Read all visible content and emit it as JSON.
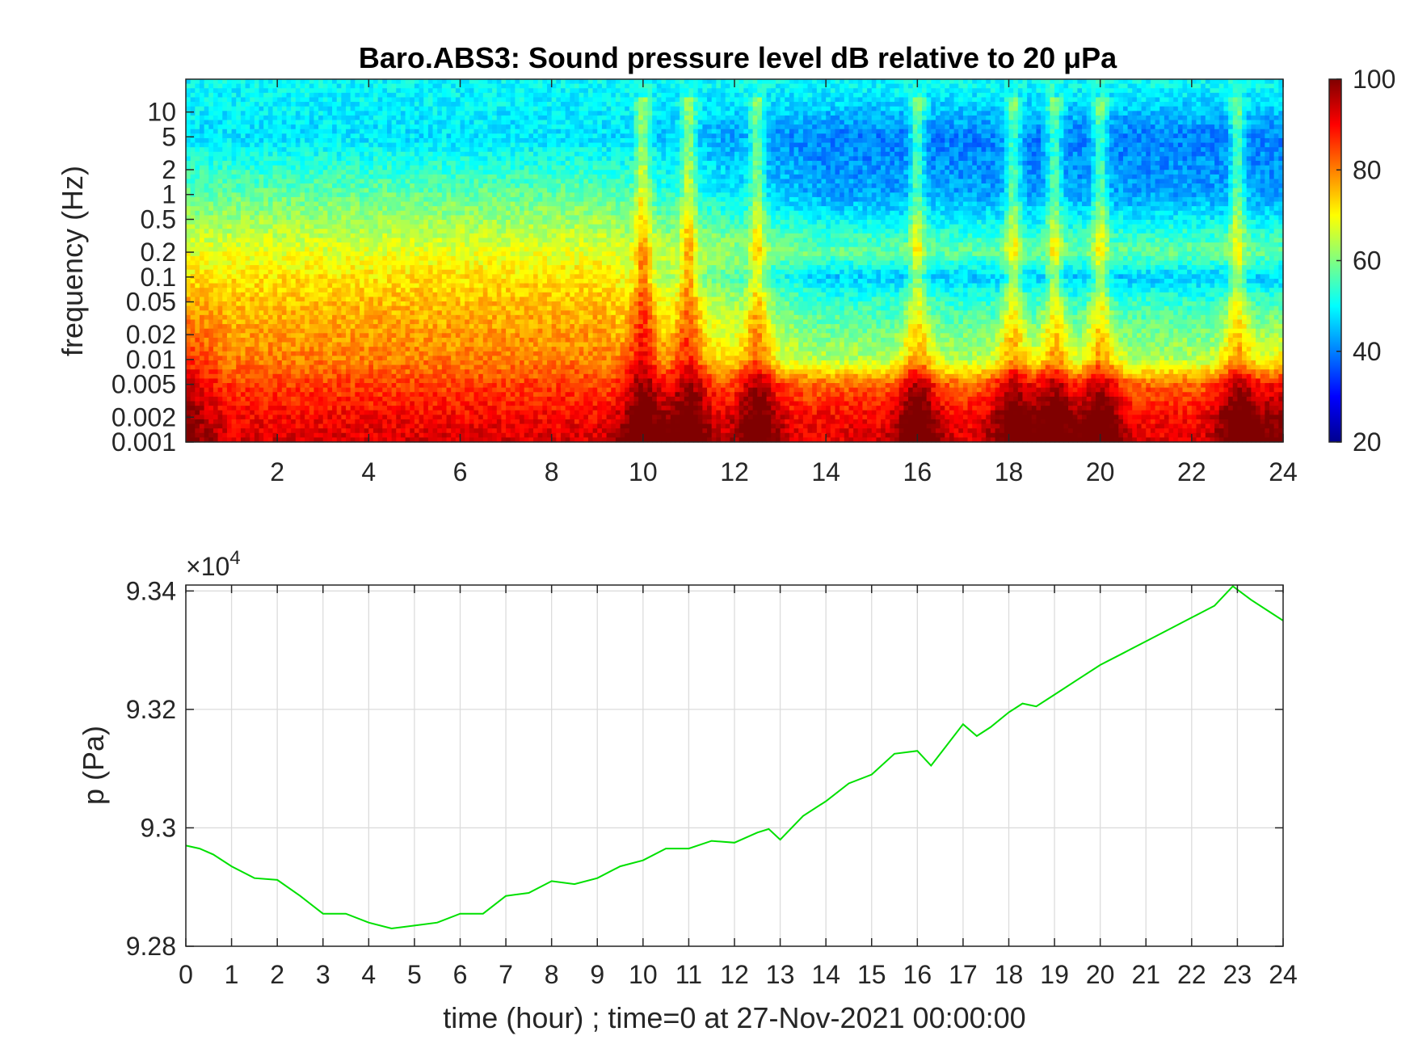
{
  "chart_data": [
    {
      "type": "heatmap",
      "title": "Baro.ABS3: Sound pressure level dB relative to 20 μPa",
      "ylabel": "frequency (Hz)",
      "xlabel": "",
      "x_range": [
        0,
        24
      ],
      "x_ticks": [
        "2",
        "4",
        "6",
        "8",
        "10",
        "12",
        "14",
        "16",
        "18",
        "20",
        "22",
        "24"
      ],
      "y_scale": "log",
      "y_range": [
        0.001,
        25
      ],
      "y_ticks": [
        "0.001",
        "0.002",
        "0.005",
        "0.01",
        "0.02",
        "0.05",
        "0.1",
        "0.2",
        "0.5",
        "1",
        "2",
        "5",
        "10"
      ],
      "colorbar": {
        "range": [
          20,
          100
        ],
        "ticks": [
          "20",
          "40",
          "60",
          "80",
          "100"
        ],
        "colormap": "jet"
      },
      "approx_profile_db": {
        "frequency_hz": [
          0.001,
          0.002,
          0.005,
          0.01,
          0.05,
          0.1,
          0.2,
          1,
          5,
          20
        ],
        "early_hours_0_to_10": [
          93,
          90,
          85,
          80,
          75,
          72,
          68,
          58,
          48,
          50
        ],
        "late_hours_14_to_24": [
          92,
          90,
          82,
          64,
          54,
          46,
          58,
          43,
          40,
          50
        ]
      },
      "event_peaks_hour": [
        10,
        11,
        12.5,
        16,
        18.1,
        19,
        20,
        23
      ]
    },
    {
      "type": "line",
      "xlabel": "time (hour) ; time=0 at 27-Nov-2021 00:00:00",
      "ylabel": "p (Pa)",
      "multiplier": "×10",
      "multiplier_exp": "4",
      "xlim": [
        0,
        24
      ],
      "ylim": [
        9.28,
        9.341
      ],
      "x_ticks": [
        "0",
        "1",
        "2",
        "3",
        "4",
        "5",
        "6",
        "7",
        "8",
        "9",
        "10",
        "11",
        "12",
        "13",
        "14",
        "15",
        "16",
        "17",
        "18",
        "19",
        "20",
        "21",
        "22",
        "23",
        "24"
      ],
      "y_ticks": [
        "9.28",
        "9.3",
        "9.32",
        "9.34"
      ],
      "grid": true,
      "line_color": "#00e000",
      "series": [
        {
          "x": [
            0,
            0.3,
            0.6,
            1.0,
            1.5,
            2.0,
            2.5,
            3.0,
            3.5,
            4.0,
            4.5,
            5.0,
            5.5,
            6.0,
            6.5,
            7.0,
            7.5,
            8.0,
            8.5,
            9.0,
            9.5,
            10.0,
            10.5,
            11.0,
            11.5,
            12.0,
            12.5,
            12.75,
            13.0,
            13.5,
            14.0,
            14.5,
            15.0,
            15.5,
            16.0,
            16.3,
            16.6,
            17.0,
            17.3,
            17.6,
            18.0,
            18.3,
            18.6,
            19.0,
            19.5,
            20.0,
            20.5,
            21.0,
            21.5,
            22.0,
            22.5,
            22.9,
            23.3,
            23.7,
            24.0
          ],
          "y": [
            9.297,
            9.2965,
            9.2955,
            9.2935,
            9.2915,
            9.2912,
            9.2885,
            9.2855,
            9.2855,
            9.284,
            9.283,
            9.2835,
            9.284,
            9.2855,
            9.2855,
            9.2885,
            9.289,
            9.291,
            9.2905,
            9.2915,
            9.2935,
            9.2945,
            9.2965,
            9.2965,
            9.2978,
            9.2975,
            9.2992,
            9.2998,
            9.298,
            9.302,
            9.3045,
            9.3075,
            9.309,
            9.3125,
            9.313,
            9.3105,
            9.3135,
            9.3175,
            9.3155,
            9.317,
            9.3195,
            9.321,
            9.3205,
            9.3225,
            9.325,
            9.3275,
            9.3295,
            9.3315,
            9.3335,
            9.3355,
            9.3375,
            9.3408,
            9.3385,
            9.3365,
            9.335
          ]
        }
      ]
    }
  ]
}
